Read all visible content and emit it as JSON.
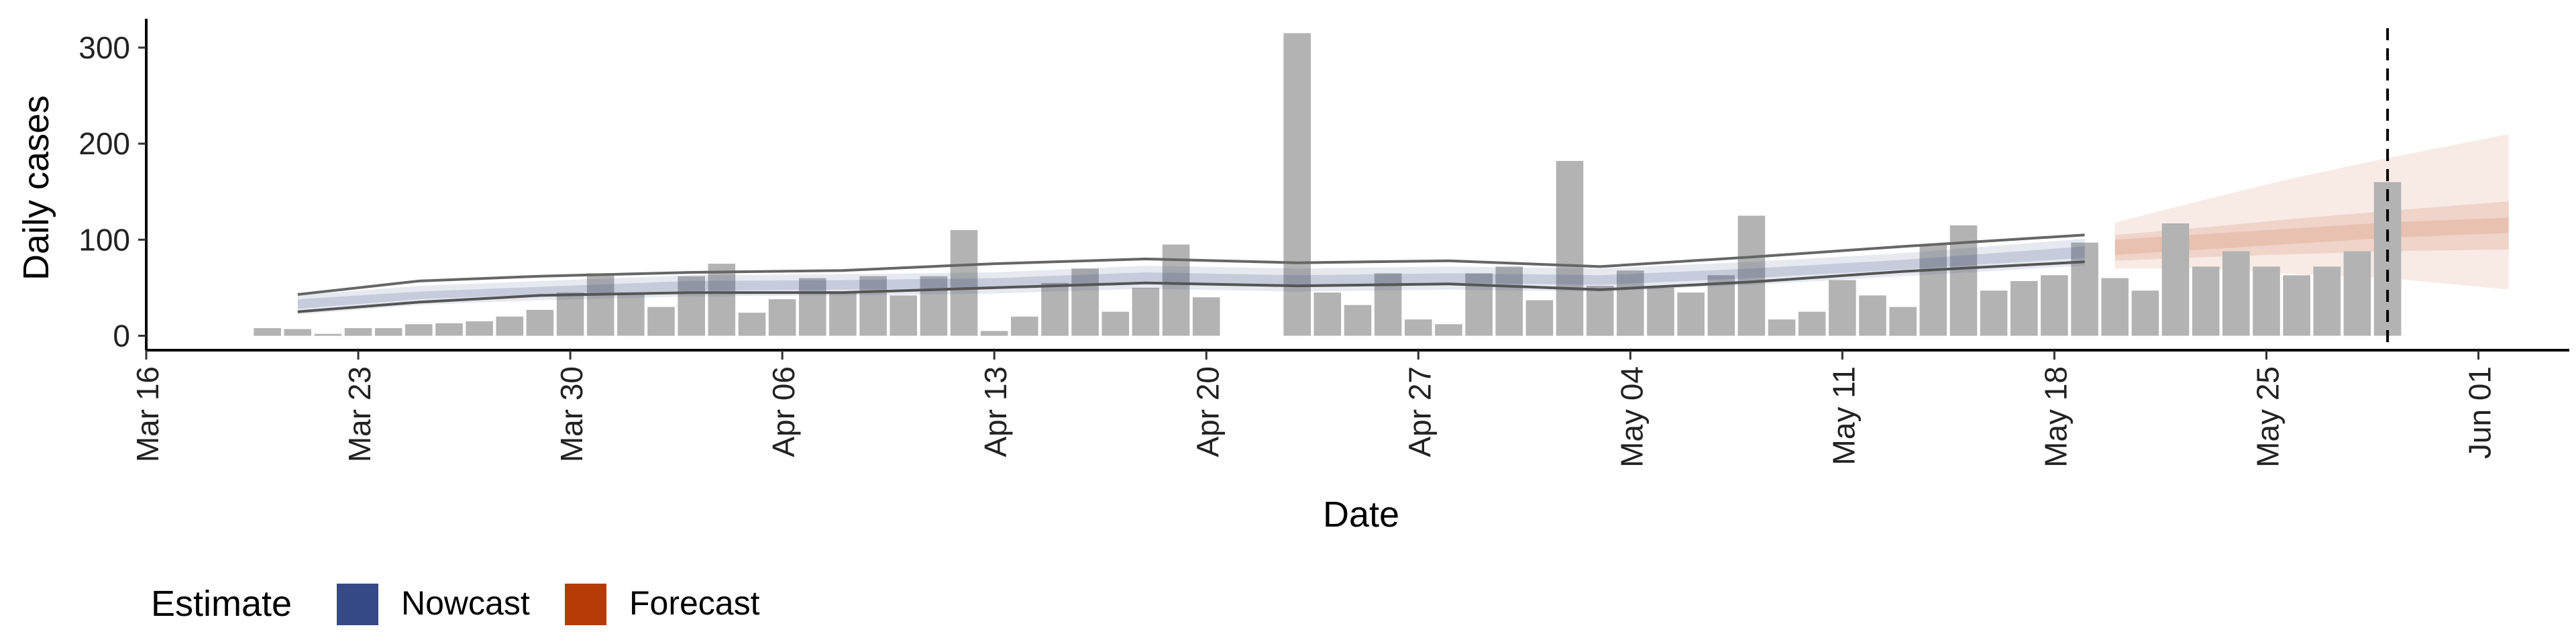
{
  "chart_data": {
    "type": "bar",
    "xlabel": "Date",
    "ylabel": "Daily cases",
    "xlim": [
      "2020-03-16",
      "2020-06-04"
    ],
    "ylim": [
      -15,
      330
    ],
    "y_ticks": [
      0,
      100,
      200,
      300
    ],
    "x_ticks": [
      "Mar 16",
      "Mar 23",
      "Mar 30",
      "Apr 06",
      "Apr 13",
      "Apr 20",
      "Apr 27",
      "May 04",
      "May 11",
      "May 18",
      "May 25",
      "Jun 01"
    ],
    "x_tick_dates": [
      "2020-03-16",
      "2020-03-23",
      "2020-03-30",
      "2020-04-06",
      "2020-04-13",
      "2020-04-20",
      "2020-04-27",
      "2020-05-04",
      "2020-05-11",
      "2020-05-18",
      "2020-05-25",
      "2020-06-01"
    ],
    "grid": false,
    "legend": {
      "title": "Estimate",
      "position": "bottom-left",
      "items": [
        {
          "label": "Nowcast",
          "color": "#354a86"
        },
        {
          "label": "Forecast",
          "color": "#b63b06"
        }
      ]
    },
    "bar_color": "#b3b3b3",
    "bars": {
      "start_date": "2020-03-20",
      "values": [
        8,
        7,
        2,
        8,
        8,
        12,
        13,
        15,
        20,
        27,
        45,
        65,
        45,
        30,
        62,
        75,
        24,
        38,
        60,
        45,
        62,
        42,
        62,
        110,
        5,
        20,
        55,
        70,
        25,
        50,
        95,
        40,
        0,
        0,
        315,
        45,
        32,
        65,
        17,
        12,
        65,
        72,
        37,
        182,
        52,
        68,
        50,
        45,
        63,
        125,
        17,
        25,
        58,
        42,
        30,
        95,
        115,
        47,
        57,
        63,
        97,
        60,
        47,
        117,
        72,
        88,
        72,
        63,
        72,
        88,
        160
      ]
    },
    "nowcast": {
      "color": "#354a86",
      "start_date": "2020-03-21",
      "end_date": "2020-05-19",
      "dates": [
        "2020-03-21",
        "2020-03-25",
        "2020-03-29",
        "2020-04-03",
        "2020-04-08",
        "2020-04-13",
        "2020-04-18",
        "2020-04-23",
        "2020-04-28",
        "2020-05-03",
        "2020-05-08",
        "2020-05-13",
        "2020-05-19"
      ],
      "median": [
        33,
        42,
        47,
        52,
        53,
        55,
        61,
        58,
        60,
        58,
        65,
        74,
        87
      ],
      "inner": [
        [
          28,
          38
        ],
        [
          38,
          46
        ],
        [
          43,
          51
        ],
        [
          47,
          57
        ],
        [
          48,
          58
        ],
        [
          50,
          60
        ],
        [
          56,
          66
        ],
        [
          53,
          63
        ],
        [
          55,
          65
        ],
        [
          53,
          63
        ],
        [
          60,
          70
        ],
        [
          69,
          79
        ],
        [
          81,
          93
        ]
      ],
      "outer": [
        [
          22,
          42
        ],
        [
          32,
          52
        ],
        [
          37,
          57
        ],
        [
          41,
          63
        ],
        [
          42,
          64
        ],
        [
          44,
          66
        ],
        [
          49,
          73
        ],
        [
          46,
          70
        ],
        [
          48,
          72
        ],
        [
          46,
          70
        ],
        [
          53,
          77
        ],
        [
          62,
          86
        ],
        [
          73,
          101
        ]
      ],
      "bounds": [
        [
          25,
          43
        ],
        [
          35,
          57
        ],
        [
          42,
          62
        ],
        [
          45,
          66
        ],
        [
          45,
          68
        ],
        [
          50,
          75
        ],
        [
          55,
          80
        ],
        [
          52,
          76
        ],
        [
          54,
          78
        ],
        [
          48,
          72
        ],
        [
          56,
          82
        ],
        [
          67,
          93
        ],
        [
          77,
          105
        ]
      ]
    },
    "forecast": {
      "color": "#b63b06",
      "dates": [
        "2020-05-20",
        "2020-05-23",
        "2020-05-26",
        "2020-05-29",
        "2020-06-02"
      ],
      "median": [
        92,
        98,
        104,
        110,
        115
      ],
      "inner": [
        [
          78,
          105
        ],
        [
          82,
          113
        ],
        [
          85,
          122
        ],
        [
          88,
          130
        ],
        [
          90,
          140
        ]
      ],
      "outer": [
        [
          70,
          118
        ],
        [
          70,
          142
        ],
        [
          64,
          165
        ],
        [
          60,
          185
        ],
        [
          48,
          210
        ]
      ]
    },
    "reference_line": {
      "date": "2020-05-29",
      "style": "dashed"
    }
  }
}
